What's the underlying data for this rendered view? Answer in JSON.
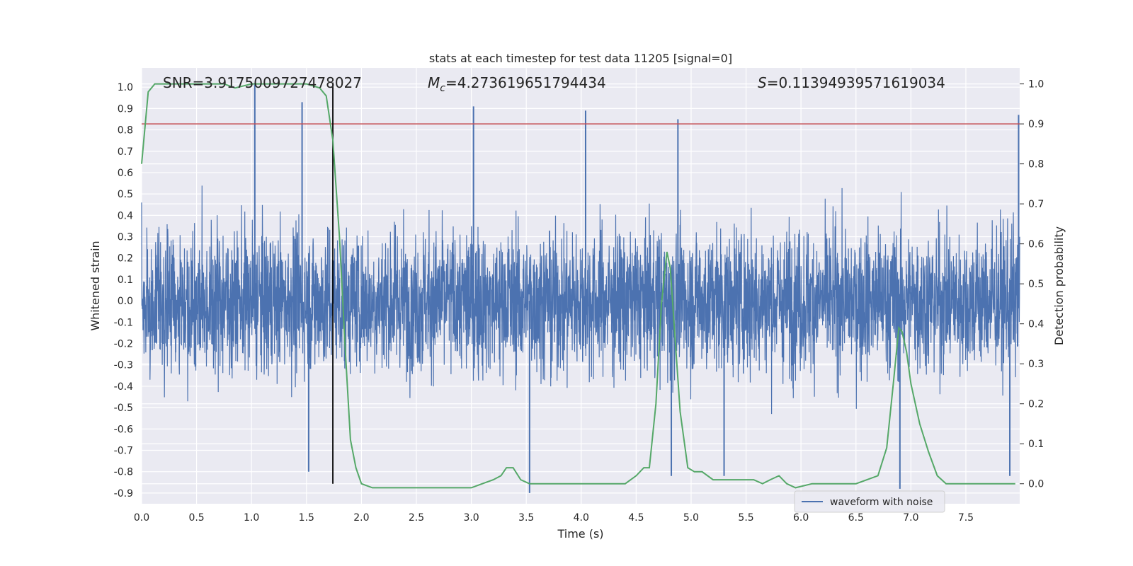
{
  "chart_data": {
    "type": "line",
    "title": "stats at each timestep for test data 11205 [signal=0]",
    "xlabel": "Time (s)",
    "ylabel_left": "Whitened strain",
    "ylabel_right": "Detection probability",
    "xlim": [
      0.0,
      7.99
    ],
    "ylim_left": [
      -0.95,
      1.09
    ],
    "ylim_right": [
      -0.05,
      1.04
    ],
    "x_ticks": [
      "0.0",
      "0.5",
      "1.0",
      "1.5",
      "2.0",
      "2.5",
      "3.0",
      "3.5",
      "4.0",
      "4.5",
      "5.0",
      "5.5",
      "6.0",
      "6.5",
      "7.0",
      "7.5"
    ],
    "x_tick_values": [
      0.0,
      0.5,
      1.0,
      1.5,
      2.0,
      2.5,
      3.0,
      3.5,
      4.0,
      4.5,
      5.0,
      5.5,
      6.0,
      6.5,
      7.0,
      7.5
    ],
    "left_ticks": [
      "1.0",
      "0.9",
      "0.8",
      "0.7",
      "0.6",
      "0.5",
      "0.4",
      "0.3",
      "0.2",
      "0.1",
      "0.0",
      "-0.1",
      "-0.2",
      "-0.3",
      "-0.4",
      "-0.5",
      "-0.6",
      "-0.7",
      "-0.8",
      "-0.9"
    ],
    "left_tick_values": [
      1.0,
      0.9,
      0.8,
      0.7,
      0.6,
      0.5,
      0.4,
      0.3,
      0.2,
      0.1,
      0.0,
      -0.1,
      -0.2,
      -0.3,
      -0.4,
      -0.5,
      -0.6,
      -0.7,
      -0.8,
      -0.9
    ],
    "right_ticks": [
      "1.0",
      "0.9",
      "0.8",
      "0.7",
      "0.6",
      "0.5",
      "0.4",
      "0.3",
      "0.2",
      "0.1",
      "0.0"
    ],
    "right_tick_values": [
      1.0,
      0.9,
      0.8,
      0.7,
      0.6,
      0.5,
      0.4,
      0.3,
      0.2,
      0.1,
      0.0
    ],
    "annotations": {
      "snr": "SNR=3.9175009727478027",
      "mc_symbol": "M",
      "mc_subscript": "c",
      "mc_value": "=4.273619651794434",
      "s_symbol": "S",
      "s_value": "=0.11394939571619034"
    },
    "threshold": {
      "axis": "right",
      "value": 0.9,
      "color": "#c44e52"
    },
    "vertical_marker": {
      "x": 1.74,
      "color": "#000000"
    },
    "legend": {
      "label": "waveform with noise",
      "position": "lower-right"
    },
    "waveform": {
      "name": "waveform with noise",
      "color": "#4c72b0",
      "envelope_typical": [
        -0.42,
        0.43
      ],
      "extremes": [
        {
          "x": 1.03,
          "y": 1.02
        },
        {
          "x": 1.46,
          "y": 0.93
        },
        {
          "x": 3.02,
          "y": 0.91
        },
        {
          "x": 4.04,
          "y": 0.89
        },
        {
          "x": 4.88,
          "y": 0.85
        },
        {
          "x": 7.98,
          "y": 0.87
        },
        {
          "x": 1.52,
          "y": -0.8
        },
        {
          "x": 3.53,
          "y": -0.9
        },
        {
          "x": 4.82,
          "y": -0.82
        },
        {
          "x": 5.3,
          "y": -0.82
        },
        {
          "x": 6.9,
          "y": -0.88
        },
        {
          "x": 7.9,
          "y": -0.82
        }
      ]
    },
    "detection_probability": {
      "name": "detection probability",
      "color": "#55a868",
      "x": [
        0.0,
        0.06,
        0.12,
        0.25,
        0.5,
        0.75,
        0.85,
        1.0,
        1.25,
        1.5,
        1.62,
        1.68,
        1.74,
        1.8,
        1.85,
        1.9,
        1.95,
        2.0,
        2.1,
        2.25,
        2.5,
        2.75,
        2.9,
        3.0,
        3.1,
        3.2,
        3.27,
        3.32,
        3.38,
        3.45,
        3.53,
        3.6,
        3.8,
        4.0,
        4.2,
        4.4,
        4.5,
        4.57,
        4.62,
        4.68,
        4.73,
        4.78,
        4.81,
        4.85,
        4.9,
        4.97,
        5.03,
        5.1,
        5.2,
        5.3,
        5.4,
        5.5,
        5.57,
        5.65,
        5.72,
        5.8,
        5.87,
        5.95,
        6.1,
        6.3,
        6.5,
        6.6,
        6.7,
        6.78,
        6.84,
        6.89,
        6.92,
        6.96,
        7.0,
        7.08,
        7.16,
        7.24,
        7.32,
        7.42,
        7.6,
        7.8,
        7.95
      ],
      "y": [
        0.8,
        0.98,
        1.0,
        1.0,
        1.0,
        1.0,
        0.99,
        1.0,
        1.0,
        1.0,
        0.99,
        0.97,
        0.86,
        0.62,
        0.35,
        0.11,
        0.04,
        0.0,
        -0.01,
        -0.01,
        -0.01,
        -0.01,
        -0.01,
        -0.01,
        0.0,
        0.01,
        0.02,
        0.04,
        0.04,
        0.01,
        0.0,
        0.0,
        0.0,
        0.0,
        0.0,
        0.0,
        0.02,
        0.04,
        0.04,
        0.2,
        0.45,
        0.58,
        0.54,
        0.38,
        0.18,
        0.04,
        0.03,
        0.03,
        0.01,
        0.01,
        0.01,
        0.01,
        0.01,
        0.0,
        0.01,
        0.02,
        0.0,
        -0.01,
        0.0,
        0.0,
        0.0,
        0.01,
        0.02,
        0.09,
        0.25,
        0.39,
        0.38,
        0.33,
        0.25,
        0.15,
        0.08,
        0.02,
        0.0,
        0.0,
        0.0,
        0.0,
        0.0
      ]
    }
  }
}
